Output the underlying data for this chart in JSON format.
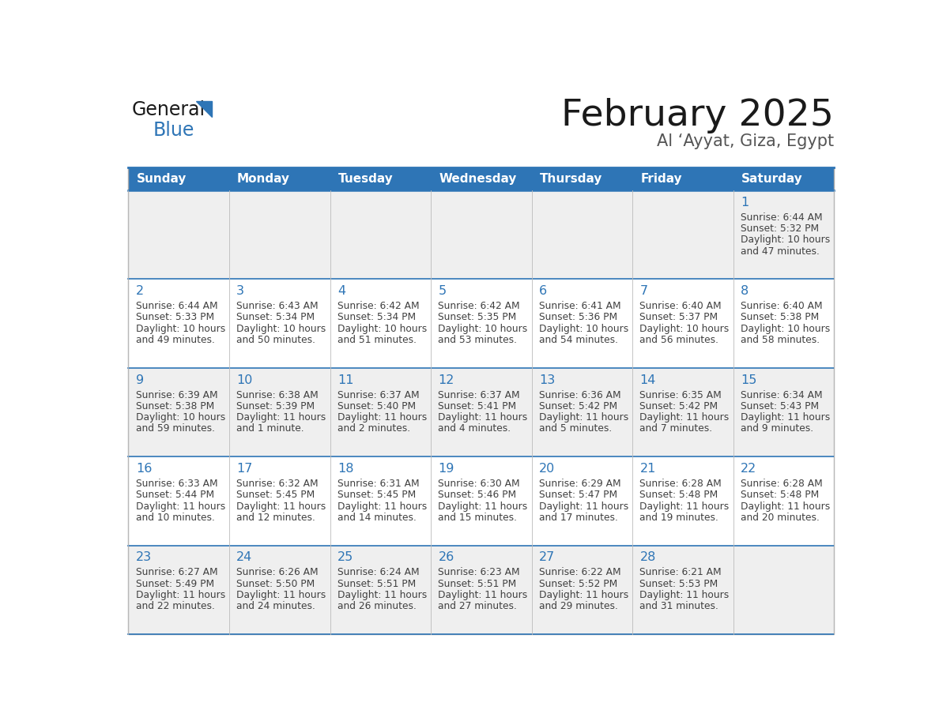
{
  "title": "February 2025",
  "subtitle": "Al ‘Ayyat, Giza, Egypt",
  "header_bg": "#2E75B6",
  "header_text_color": "#FFFFFF",
  "day_names": [
    "Sunday",
    "Monday",
    "Tuesday",
    "Wednesday",
    "Thursday",
    "Friday",
    "Saturday"
  ],
  "row_bg_odd": "#EFEFEF",
  "row_bg_even": "#FFFFFF",
  "cell_border_color": "#2E75B6",
  "day_num_color": "#2E75B6",
  "info_text_color": "#404040",
  "days": [
    {
      "day": 1,
      "col": 6,
      "row": 0,
      "sunrise": "6:44 AM",
      "sunset": "5:32 PM",
      "daylight_h": "10 hours",
      "daylight_m": "and 47 minutes."
    },
    {
      "day": 2,
      "col": 0,
      "row": 1,
      "sunrise": "6:44 AM",
      "sunset": "5:33 PM",
      "daylight_h": "10 hours",
      "daylight_m": "and 49 minutes."
    },
    {
      "day": 3,
      "col": 1,
      "row": 1,
      "sunrise": "6:43 AM",
      "sunset": "5:34 PM",
      "daylight_h": "10 hours",
      "daylight_m": "and 50 minutes."
    },
    {
      "day": 4,
      "col": 2,
      "row": 1,
      "sunrise": "6:42 AM",
      "sunset": "5:34 PM",
      "daylight_h": "10 hours",
      "daylight_m": "and 51 minutes."
    },
    {
      "day": 5,
      "col": 3,
      "row": 1,
      "sunrise": "6:42 AM",
      "sunset": "5:35 PM",
      "daylight_h": "10 hours",
      "daylight_m": "and 53 minutes."
    },
    {
      "day": 6,
      "col": 4,
      "row": 1,
      "sunrise": "6:41 AM",
      "sunset": "5:36 PM",
      "daylight_h": "10 hours",
      "daylight_m": "and 54 minutes."
    },
    {
      "day": 7,
      "col": 5,
      "row": 1,
      "sunrise": "6:40 AM",
      "sunset": "5:37 PM",
      "daylight_h": "10 hours",
      "daylight_m": "and 56 minutes."
    },
    {
      "day": 8,
      "col": 6,
      "row": 1,
      "sunrise": "6:40 AM",
      "sunset": "5:38 PM",
      "daylight_h": "10 hours",
      "daylight_m": "and 58 minutes."
    },
    {
      "day": 9,
      "col": 0,
      "row": 2,
      "sunrise": "6:39 AM",
      "sunset": "5:38 PM",
      "daylight_h": "10 hours",
      "daylight_m": "and 59 minutes."
    },
    {
      "day": 10,
      "col": 1,
      "row": 2,
      "sunrise": "6:38 AM",
      "sunset": "5:39 PM",
      "daylight_h": "11 hours",
      "daylight_m": "and 1 minute."
    },
    {
      "day": 11,
      "col": 2,
      "row": 2,
      "sunrise": "6:37 AM",
      "sunset": "5:40 PM",
      "daylight_h": "11 hours",
      "daylight_m": "and 2 minutes."
    },
    {
      "day": 12,
      "col": 3,
      "row": 2,
      "sunrise": "6:37 AM",
      "sunset": "5:41 PM",
      "daylight_h": "11 hours",
      "daylight_m": "and 4 minutes."
    },
    {
      "day": 13,
      "col": 4,
      "row": 2,
      "sunrise": "6:36 AM",
      "sunset": "5:42 PM",
      "daylight_h": "11 hours",
      "daylight_m": "and 5 minutes."
    },
    {
      "day": 14,
      "col": 5,
      "row": 2,
      "sunrise": "6:35 AM",
      "sunset": "5:42 PM",
      "daylight_h": "11 hours",
      "daylight_m": "and 7 minutes."
    },
    {
      "day": 15,
      "col": 6,
      "row": 2,
      "sunrise": "6:34 AM",
      "sunset": "5:43 PM",
      "daylight_h": "11 hours",
      "daylight_m": "and 9 minutes."
    },
    {
      "day": 16,
      "col": 0,
      "row": 3,
      "sunrise": "6:33 AM",
      "sunset": "5:44 PM",
      "daylight_h": "11 hours",
      "daylight_m": "and 10 minutes."
    },
    {
      "day": 17,
      "col": 1,
      "row": 3,
      "sunrise": "6:32 AM",
      "sunset": "5:45 PM",
      "daylight_h": "11 hours",
      "daylight_m": "and 12 minutes."
    },
    {
      "day": 18,
      "col": 2,
      "row": 3,
      "sunrise": "6:31 AM",
      "sunset": "5:45 PM",
      "daylight_h": "11 hours",
      "daylight_m": "and 14 minutes."
    },
    {
      "day": 19,
      "col": 3,
      "row": 3,
      "sunrise": "6:30 AM",
      "sunset": "5:46 PM",
      "daylight_h": "11 hours",
      "daylight_m": "and 15 minutes."
    },
    {
      "day": 20,
      "col": 4,
      "row": 3,
      "sunrise": "6:29 AM",
      "sunset": "5:47 PM",
      "daylight_h": "11 hours",
      "daylight_m": "and 17 minutes."
    },
    {
      "day": 21,
      "col": 5,
      "row": 3,
      "sunrise": "6:28 AM",
      "sunset": "5:48 PM",
      "daylight_h": "11 hours",
      "daylight_m": "and 19 minutes."
    },
    {
      "day": 22,
      "col": 6,
      "row": 3,
      "sunrise": "6:28 AM",
      "sunset": "5:48 PM",
      "daylight_h": "11 hours",
      "daylight_m": "and 20 minutes."
    },
    {
      "day": 23,
      "col": 0,
      "row": 4,
      "sunrise": "6:27 AM",
      "sunset": "5:49 PM",
      "daylight_h": "11 hours",
      "daylight_m": "and 22 minutes."
    },
    {
      "day": 24,
      "col": 1,
      "row": 4,
      "sunrise": "6:26 AM",
      "sunset": "5:50 PM",
      "daylight_h": "11 hours",
      "daylight_m": "and 24 minutes."
    },
    {
      "day": 25,
      "col": 2,
      "row": 4,
      "sunrise": "6:24 AM",
      "sunset": "5:51 PM",
      "daylight_h": "11 hours",
      "daylight_m": "and 26 minutes."
    },
    {
      "day": 26,
      "col": 3,
      "row": 4,
      "sunrise": "6:23 AM",
      "sunset": "5:51 PM",
      "daylight_h": "11 hours",
      "daylight_m": "and 27 minutes."
    },
    {
      "day": 27,
      "col": 4,
      "row": 4,
      "sunrise": "6:22 AM",
      "sunset": "5:52 PM",
      "daylight_h": "11 hours",
      "daylight_m": "and 29 minutes."
    },
    {
      "day": 28,
      "col": 5,
      "row": 4,
      "sunrise": "6:21 AM",
      "sunset": "5:53 PM",
      "daylight_h": "11 hours",
      "daylight_m": "and 31 minutes."
    }
  ],
  "num_rows": 5,
  "num_cols": 7,
  "logo_text1": "General",
  "logo_text2": "Blue",
  "logo_text1_color": "#1a1a1a",
  "logo_text2_color": "#2E75B6",
  "logo_triangle_color": "#2E75B6"
}
